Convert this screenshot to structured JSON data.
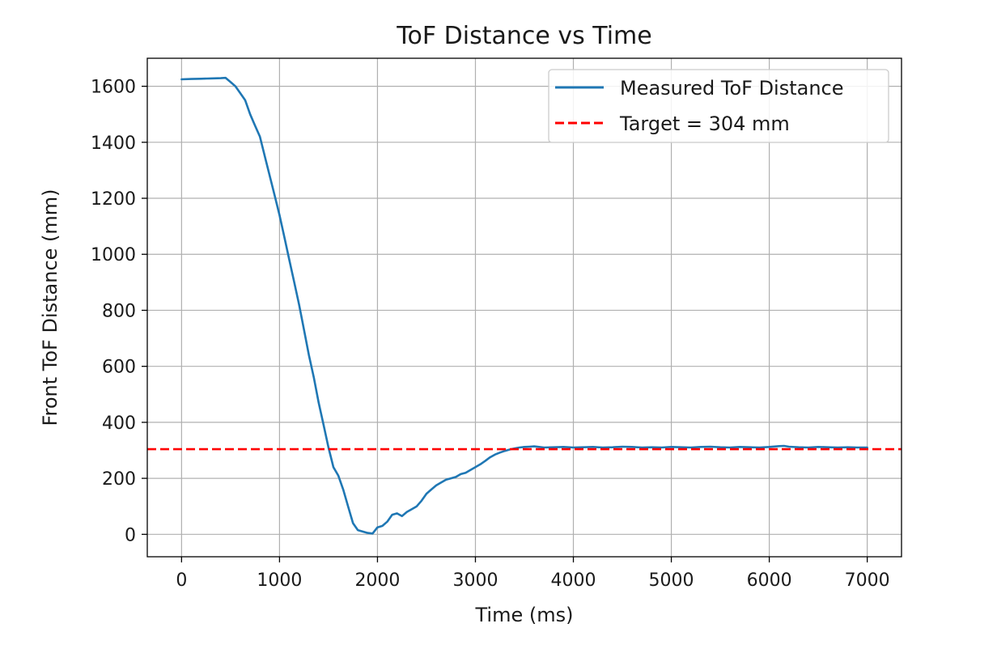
{
  "chart_data": {
    "type": "line",
    "title": "ToF Distance vs Time",
    "xlabel": "Time (ms)",
    "ylabel": "Front ToF Distance (mm)",
    "xlim": [
      -350,
      7350
    ],
    "ylim": [
      -80,
      1700
    ],
    "xticks": [
      0,
      1000,
      2000,
      3000,
      4000,
      5000,
      6000,
      7000
    ],
    "yticks": [
      0,
      200,
      400,
      600,
      800,
      1000,
      1200,
      1400,
      1600
    ],
    "grid": true,
    "legend_position": "top-right",
    "series": [
      {
        "name": "Measured ToF Distance",
        "color": "#1f77b4",
        "style": "solid",
        "x": [
          0,
          100,
          200,
          300,
          400,
          450,
          500,
          550,
          600,
          650,
          700,
          750,
          800,
          850,
          900,
          950,
          1000,
          1050,
          1100,
          1150,
          1200,
          1250,
          1300,
          1350,
          1400,
          1450,
          1500,
          1550,
          1600,
          1650,
          1700,
          1750,
          1800,
          1850,
          1900,
          1950,
          2000,
          2050,
          2100,
          2150,
          2200,
          2250,
          2300,
          2350,
          2400,
          2450,
          2500,
          2550,
          2600,
          2650,
          2700,
          2750,
          2800,
          2850,
          2900,
          2950,
          3000,
          3050,
          3100,
          3150,
          3200,
          3250,
          3300,
          3350,
          3400,
          3450,
          3500,
          3550,
          3600,
          3650,
          3700,
          3800,
          3900,
          4000,
          4100,
          4200,
          4300,
          4400,
          4500,
          4600,
          4700,
          4800,
          4900,
          5000,
          5100,
          5200,
          5300,
          5400,
          5500,
          5600,
          5700,
          5800,
          5900,
          6000,
          6100,
          6150,
          6200,
          6300,
          6400,
          6500,
          6600,
          6700,
          6800,
          6900,
          7000
        ],
        "y": [
          1625,
          1626,
          1627,
          1628,
          1629,
          1630,
          1615,
          1600,
          1575,
          1550,
          1500,
          1460,
          1420,
          1350,
          1280,
          1210,
          1140,
          1060,
          980,
          900,
          820,
          730,
          640,
          560,
          470,
          390,
          310,
          240,
          210,
          160,
          100,
          40,
          15,
          10,
          5,
          3,
          25,
          30,
          45,
          70,
          75,
          65,
          80,
          90,
          100,
          120,
          145,
          160,
          175,
          185,
          195,
          200,
          205,
          215,
          220,
          230,
          240,
          250,
          262,
          275,
          285,
          292,
          298,
          303,
          307,
          310,
          312,
          313,
          314,
          312,
          310,
          311,
          312,
          310,
          311,
          312,
          310,
          311,
          313,
          312,
          310,
          311,
          310,
          312,
          311,
          310,
          312,
          313,
          311,
          310,
          312,
          311,
          310,
          312,
          315,
          316,
          313,
          311,
          310,
          312,
          311,
          310,
          311,
          310,
          310
        ]
      },
      {
        "name": "Target = 304 mm",
        "color": "#ff0000",
        "style": "dashed",
        "y_constant": 304
      }
    ]
  }
}
